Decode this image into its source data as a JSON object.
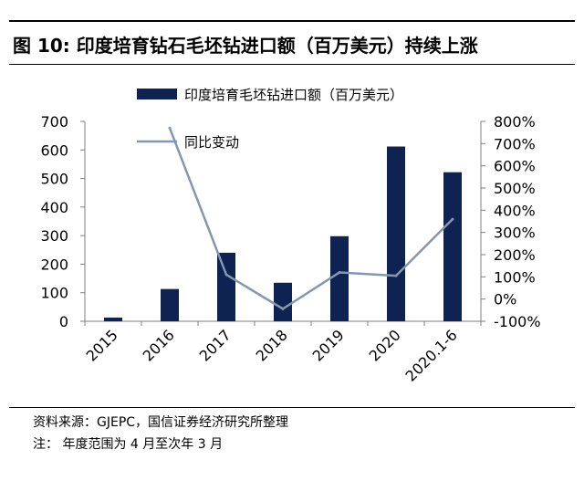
{
  "figure": {
    "title": "图 10:  印度培育钻石毛坯钻进口额（百万美元）持续上涨",
    "source": "资料来源：GJEPC，国信证券经济研究所整理",
    "note": "注：  年度范围为 4 月至次年 3 月"
  },
  "chart_data": {
    "type": "bar",
    "categories": [
      "2015",
      "2016",
      "2017",
      "2018",
      "2019",
      "2020",
      "2020.1-6"
    ],
    "series": [
      {
        "name": "印度培育毛坯钻进口额（百万美元）",
        "type": "bar",
        "axis": "left",
        "color": "#0f2352",
        "values": [
          13,
          113,
          240,
          135,
          298,
          612,
          522
        ]
      },
      {
        "name": "同比变动",
        "type": "line",
        "axis": "right",
        "color": "#8497b0",
        "values": [
          null,
          7.7,
          1.1,
          -0.44,
          1.2,
          1.05,
          3.6
        ]
      }
    ],
    "ylim_left": [
      0,
      700
    ],
    "yticks_left": [
      "0",
      "100",
      "200",
      "300",
      "400",
      "500",
      "600",
      "700"
    ],
    "ylim_right": [
      -1,
      8
    ],
    "yticks_right": [
      "-100%",
      "0%",
      "100%",
      "200%",
      "300%",
      "400%",
      "500%",
      "600%",
      "700%",
      "800%"
    ],
    "grid": false,
    "legend_position": "top"
  }
}
